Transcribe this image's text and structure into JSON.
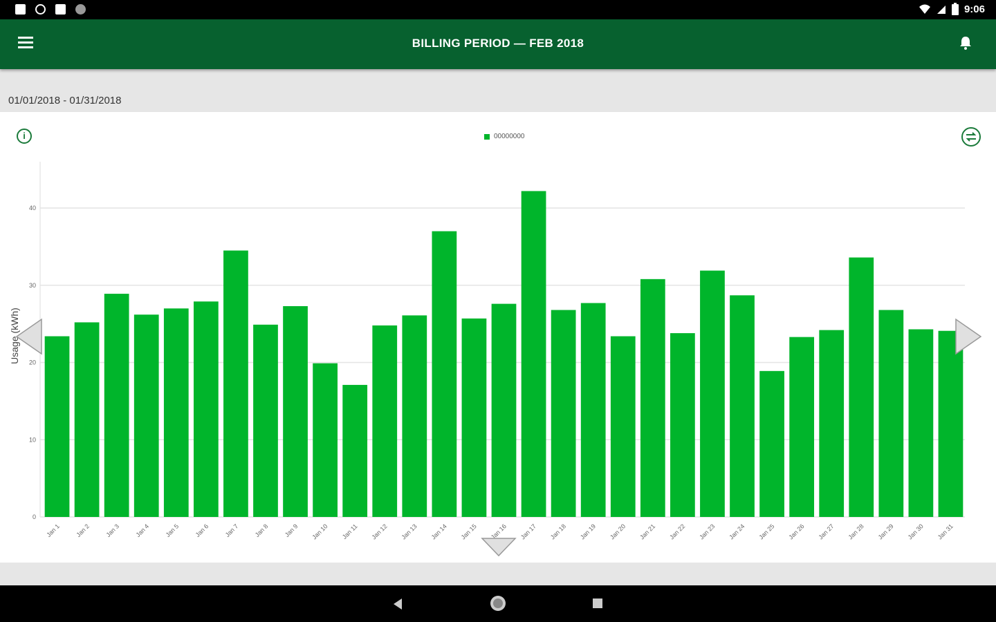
{
  "status_bar": {
    "time": "9:06"
  },
  "app_bar": {
    "title": "BILLING PERIOD  —  FEB 2018"
  },
  "date_range": "01/01/2018 - 01/31/2018",
  "legend": {
    "label": "00000000"
  },
  "colors": {
    "bar": "#00b52b",
    "app_bar": "#07612f",
    "icon": "#1a7a3a"
  },
  "icons": {
    "menu": "hamburger-icon",
    "bell": "bell-icon",
    "info": "info-icon",
    "compare": "compare-icon"
  },
  "chart_data": {
    "type": "bar",
    "ylabel": "Usage (kWh)",
    "ylim": [
      0,
      46
    ],
    "yticks": [
      0,
      10,
      20,
      30,
      40
    ],
    "grid": true,
    "legend_placement": "top-center",
    "categories": [
      "Jan 1",
      "Jan 2",
      "Jan 3",
      "Jan 4",
      "Jan 5",
      "Jan 6",
      "Jan 7",
      "Jan 8",
      "Jan 9",
      "Jan 10",
      "Jan 11",
      "Jan 12",
      "Jan 13",
      "Jan 14",
      "Jan 15",
      "Jan 16",
      "Jan 17",
      "Jan 18",
      "Jan 19",
      "Jan 20",
      "Jan 21",
      "Jan 22",
      "Jan 23",
      "Jan 24",
      "Jan 25",
      "Jan 26",
      "Jan 27",
      "Jan 28",
      "Jan 29",
      "Jan 30",
      "Jan 31"
    ],
    "series": [
      {
        "name": "00000000",
        "values": [
          23.4,
          25.2,
          28.9,
          26.2,
          27.0,
          27.9,
          34.5,
          24.9,
          27.3,
          19.9,
          17.1,
          24.8,
          26.1,
          37.0,
          25.7,
          27.6,
          42.2,
          26.8,
          27.7,
          23.4,
          30.8,
          23.8,
          31.9,
          28.7,
          18.9,
          23.3,
          24.2,
          33.6,
          26.8,
          24.3,
          24.1
        ]
      }
    ]
  }
}
